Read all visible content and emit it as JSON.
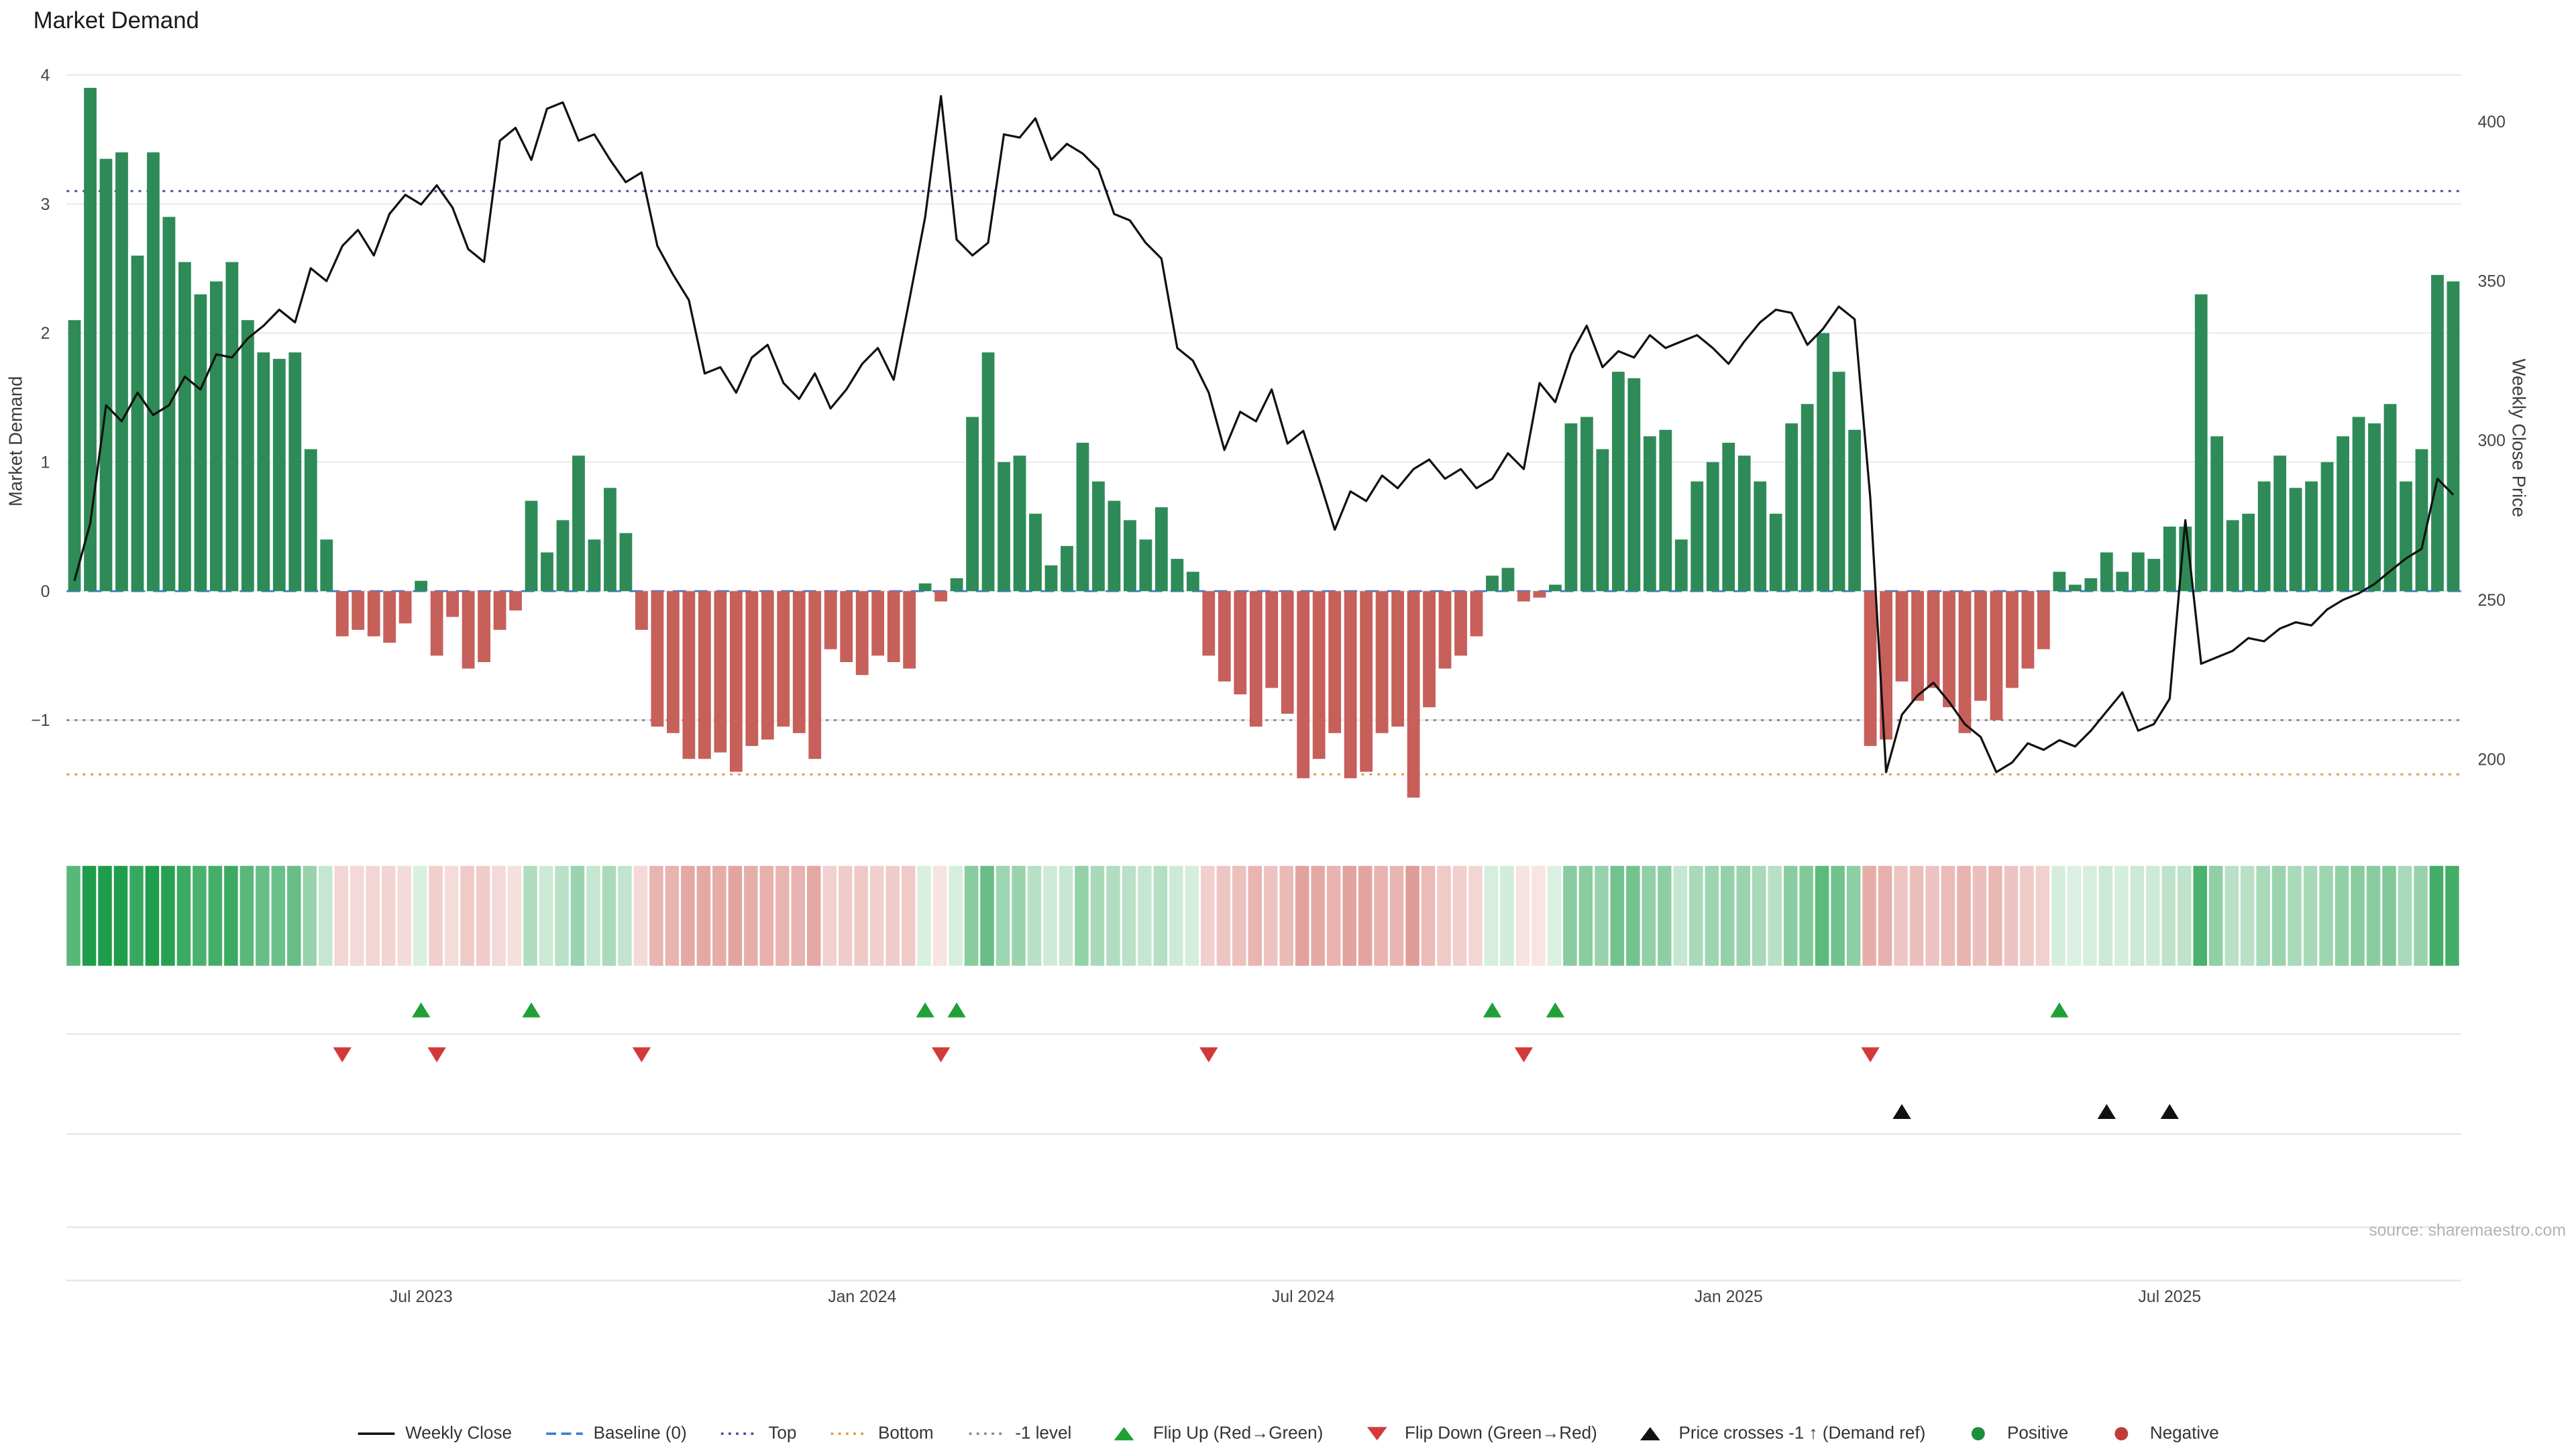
{
  "title": "Market Demand",
  "source": "source: sharemaestro.com",
  "axes": {
    "left_label": "Market Demand",
    "right_label": "Weekly Close Price",
    "left_ticks": [
      4,
      3,
      2,
      1,
      0,
      -1
    ],
    "right_ticks": [
      400,
      350,
      300,
      250,
      200
    ],
    "x_ticks": [
      {
        "label": "Jul 2023",
        "index": 22
      },
      {
        "label": "Jan 2024",
        "index": 50
      },
      {
        "label": "Jul 2024",
        "index": 78
      },
      {
        "label": "Jan 2025",
        "index": 105
      },
      {
        "label": "Jul 2025",
        "index": 133
      }
    ]
  },
  "chart_data": {
    "type": "bar+line",
    "x_unit": "week",
    "x_range": [
      "Feb 2023",
      "Nov 2025"
    ],
    "demand_ylim": [
      -1.94,
      4.0
    ],
    "price_ylim": [
      174,
      414
    ],
    "grid": true,
    "legend_position": "bottom",
    "reference_lines": {
      "baseline": 0,
      "top": 3.1,
      "bottom": -1.42,
      "minus_one": -1
    },
    "series": [
      {
        "name": "Market Demand",
        "type": "bar",
        "values": [
          2.1,
          3.9,
          3.35,
          3.4,
          2.6,
          3.4,
          2.9,
          2.55,
          2.3,
          2.4,
          2.55,
          2.1,
          1.85,
          1.8,
          1.85,
          1.1,
          0.4,
          -0.35,
          -0.3,
          -0.35,
          -0.4,
          -0.25,
          0.08,
          -0.5,
          -0.2,
          -0.6,
          -0.55,
          -0.3,
          -0.15,
          0.7,
          0.3,
          0.55,
          1.05,
          0.4,
          0.8,
          0.45,
          -0.3,
          -1.05,
          -1.1,
          -1.3,
          -1.3,
          -1.25,
          -1.4,
          -1.2,
          -1.15,
          -1.05,
          -1.1,
          -1.3,
          -0.45,
          -0.55,
          -0.65,
          -0.5,
          -0.55,
          -0.6,
          0.06,
          -0.08,
          0.1,
          1.35,
          1.85,
          1.0,
          1.05,
          0.6,
          0.2,
          0.35,
          1.15,
          0.85,
          0.7,
          0.55,
          0.4,
          0.65,
          0.25,
          0.15,
          -0.5,
          -0.7,
          -0.8,
          -1.05,
          -0.75,
          -0.95,
          -1.45,
          -1.3,
          -1.1,
          -1.45,
          -1.4,
          -1.1,
          -1.05,
          -1.6,
          -0.9,
          -0.6,
          -0.5,
          -0.35,
          0.12,
          0.18,
          -0.08,
          -0.05,
          0.05,
          1.3,
          1.35,
          1.1,
          1.7,
          1.65,
          1.2,
          1.25,
          0.4,
          0.85,
          1.0,
          1.15,
          1.05,
          0.85,
          0.6,
          1.3,
          1.45,
          2.0,
          1.7,
          1.25,
          -1.2,
          -1.15,
          -0.7,
          -0.85,
          -0.75,
          -0.9,
          -1.1,
          -0.85,
          -1.0,
          -0.75,
          -0.6,
          -0.45,
          0.15,
          0.05,
          0.1,
          0.3,
          0.15,
          0.3,
          0.25,
          0.5,
          0.5,
          2.3,
          1.2,
          0.55,
          0.6,
          0.85,
          1.05,
          0.8,
          0.85,
          1.0,
          1.2,
          1.35,
          1.3,
          1.45,
          0.85,
          1.1,
          2.45,
          2.4
        ]
      },
      {
        "name": "Weekly Close",
        "type": "line",
        "values": [
          256,
          274,
          311,
          306,
          315,
          308,
          311,
          320,
          316,
          327,
          326,
          332,
          336,
          341,
          337,
          354,
          350,
          361,
          366,
          358,
          371,
          377,
          374,
          380,
          373,
          360,
          356,
          394,
          398,
          388,
          404,
          406,
          394,
          396,
          388,
          381,
          384,
          361,
          352,
          344,
          321,
          323,
          315,
          326,
          330,
          318,
          313,
          321,
          310,
          316,
          324,
          329,
          319,
          344,
          370,
          408,
          363,
          358,
          362,
          396,
          395,
          401,
          388,
          393,
          390,
          385,
          371,
          369,
          362,
          357,
          329,
          325,
          315,
          297,
          309,
          306,
          316,
          299,
          303,
          288,
          272,
          284,
          281,
          289,
          285,
          291,
          294,
          288,
          291,
          285,
          288,
          296,
          291,
          318,
          312,
          327,
          336,
          323,
          328,
          326,
          333,
          329,
          331,
          333,
          329,
          324,
          331,
          337,
          341,
          340,
          330,
          335,
          342,
          338,
          282,
          196,
          214,
          220,
          224,
          218,
          211,
          207,
          196,
          199,
          205,
          203,
          206,
          204,
          209,
          215,
          221,
          209,
          211,
          219,
          275,
          230,
          232,
          234,
          238,
          237,
          241,
          243,
          242,
          247,
          250,
          252,
          255,
          259,
          263,
          266,
          288,
          283
        ]
      }
    ],
    "markers": {
      "flip_up": [
        22,
        29,
        54,
        56,
        90,
        94,
        126
      ],
      "flip_down": [
        17,
        23,
        36,
        55,
        72,
        92,
        114
      ],
      "price_cross": [
        116,
        129,
        133
      ]
    },
    "heatmap": {
      "note": "weekly demand sign/intensity strip derived from Market Demand values"
    }
  },
  "colors": {
    "positive_bar": "#2e8b57",
    "negative_bar": "#c75f5a",
    "price_line": "#111111",
    "baseline": "#3b7dd8",
    "top_line": "#3f51a3",
    "bottom_line": "#e8973d",
    "minus_one_line": "#8a8a8a",
    "flip_up": "#21a038",
    "flip_down": "#d23a3a",
    "price_cross": "#111111",
    "heat_positive": "#1e9e4a",
    "heat_negative": "#cc5a52",
    "grid": "#ececec"
  },
  "legend": [
    {
      "label": "Weekly Close",
      "swatch": "line",
      "color": "#111111"
    },
    {
      "label": "Baseline (0)",
      "swatch": "dash",
      "color": "#3b7dd8"
    },
    {
      "label": "Top",
      "swatch": "dot-line",
      "color": "#3f51a3"
    },
    {
      "label": "Bottom",
      "swatch": "dot-line",
      "color": "#e8973d"
    },
    {
      "label": "-1 level",
      "swatch": "dot-line",
      "color": "#8a8a8a"
    },
    {
      "label": "Flip Up (Red→Green)",
      "swatch": "triangle-up",
      "color": "#21a038"
    },
    {
      "label": "Flip Down (Green→Red)",
      "swatch": "triangle-down",
      "color": "#d23a3a"
    },
    {
      "label": "Price crosses -1 ↑ (Demand ref)",
      "swatch": "triangle-up",
      "color": "#111111"
    },
    {
      "label": "Positive",
      "swatch": "circle",
      "color": "#1e8e3e"
    },
    {
      "label": "Negative",
      "swatch": "circle",
      "color": "#c23b3b"
    }
  ]
}
